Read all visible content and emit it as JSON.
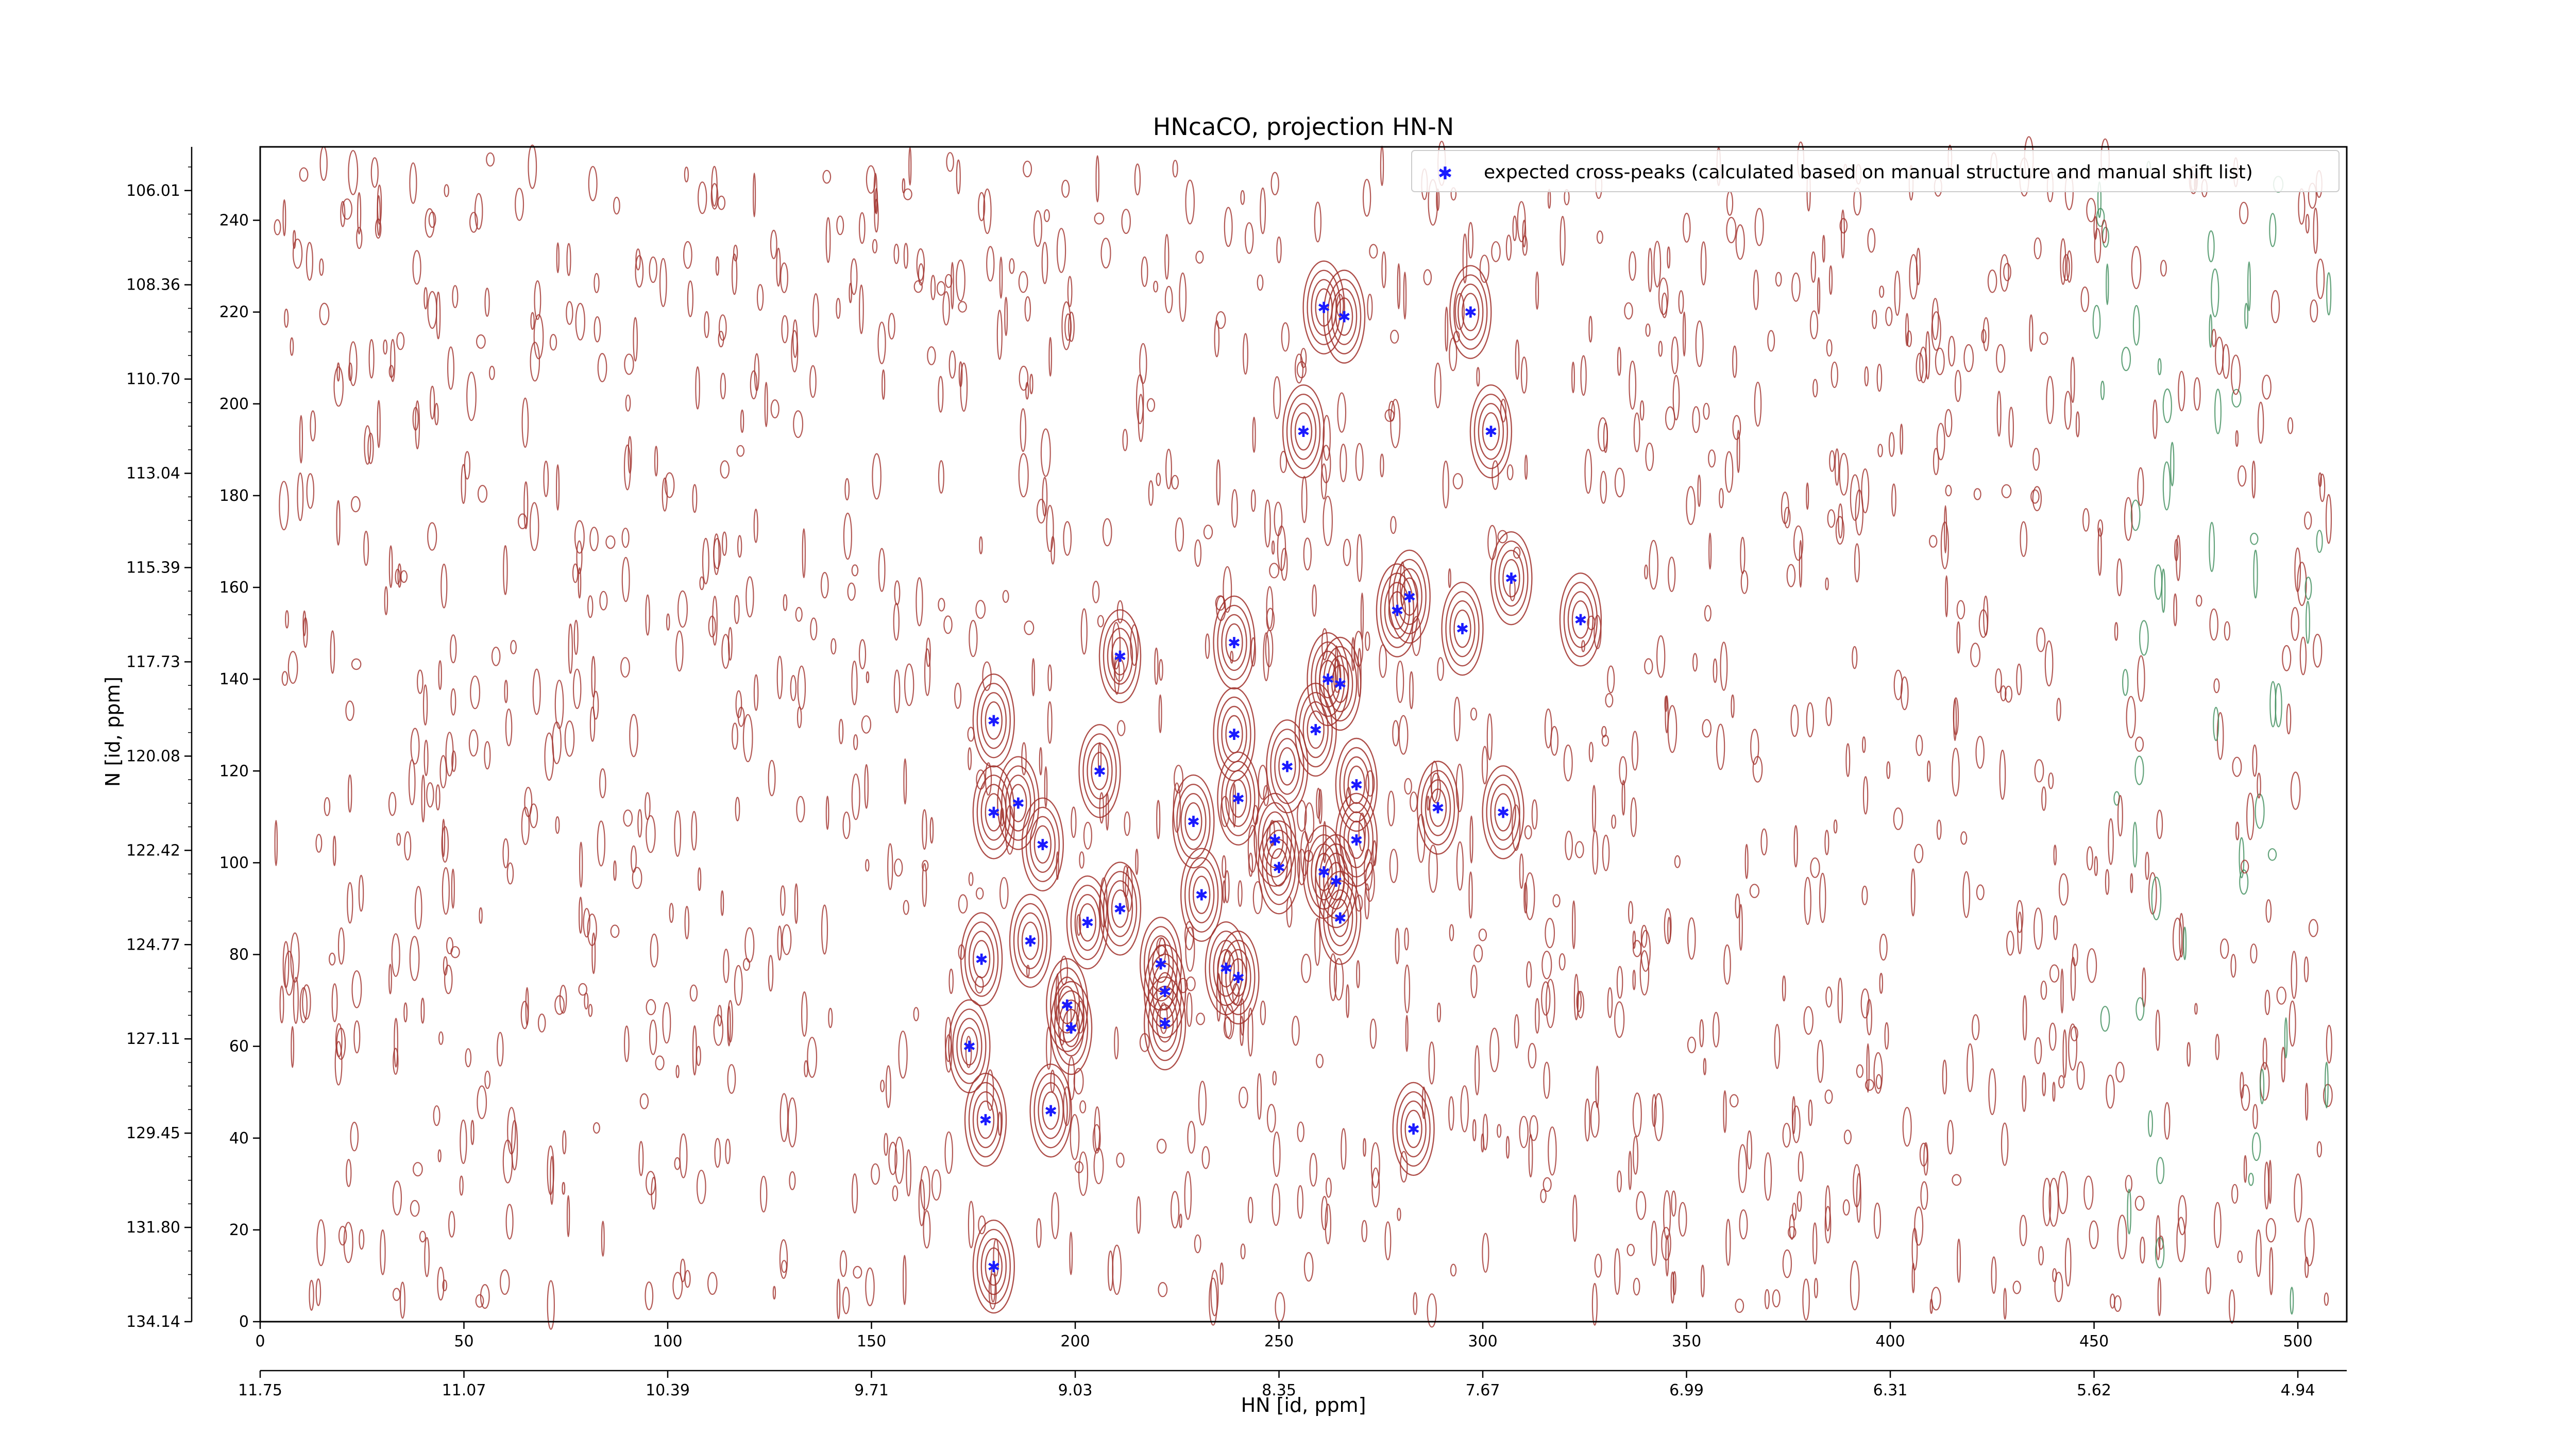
{
  "chart_data": {
    "type": "scatter",
    "title": "HNcaCO, projection HN-N",
    "xlabel": "HN [id, ppm]",
    "ylabel": "N [id, ppm]",
    "x_index_range": [
      0,
      512
    ],
    "y_index_range": [
      0,
      256
    ],
    "x_index_ticks": [
      "0",
      "50",
      "100",
      "150",
      "200",
      "250",
      "300",
      "350",
      "400",
      "450",
      "500"
    ],
    "x_ppm_ticks": [
      "11.75",
      "11.07",
      "10.39",
      "9.71",
      "9.03",
      "8.35",
      "7.67",
      "6.99",
      "6.31",
      "5.62",
      "4.94"
    ],
    "y_index_ticks": [
      "0",
      "20",
      "40",
      "60",
      "80",
      "100",
      "120",
      "140",
      "160",
      "180",
      "200",
      "220",
      "240"
    ],
    "y_ppm_ticks": [
      "134.14",
      "131.80",
      "129.45",
      "127.11",
      "124.77",
      "122.42",
      "120.08",
      "117.73",
      "115.39",
      "113.04",
      "110.70",
      "108.36",
      "106.01"
    ],
    "legend": {
      "placement": "top-right",
      "marker": "blue-star",
      "label": "expected cross-peaks (calculated based on manual structure and manual shift list)"
    },
    "colors": {
      "positive_contour": "#a0302a",
      "negative_contour": "#3c8c5a",
      "marker": "#1a1aff"
    },
    "series": [
      {
        "name": "expected cross-peaks (calculated based on manual structure and manual shift list)",
        "points": [
          [
            261,
            221
          ],
          [
            266,
            219
          ],
          [
            297,
            220
          ],
          [
            256,
            194
          ],
          [
            302,
            194
          ],
          [
            307,
            162
          ],
          [
            282,
            158
          ],
          [
            279,
            155
          ],
          [
            295,
            151
          ],
          [
            324,
            153
          ],
          [
            211,
            145
          ],
          [
            239,
            148
          ],
          [
            262,
            140
          ],
          [
            265,
            139
          ],
          [
            180,
            131
          ],
          [
            239,
            128
          ],
          [
            259,
            129
          ],
          [
            252,
            121
          ],
          [
            269,
            117
          ],
          [
            206,
            120
          ],
          [
            180,
            111
          ],
          [
            186,
            113
          ],
          [
            240,
            114
          ],
          [
            289,
            112
          ],
          [
            305,
            111
          ],
          [
            229,
            109
          ],
          [
            192,
            104
          ],
          [
            249,
            105
          ],
          [
            269,
            105
          ],
          [
            250,
            99
          ],
          [
            261,
            98
          ],
          [
            264,
            96
          ],
          [
            231,
            93
          ],
          [
            211,
            90
          ],
          [
            203,
            87
          ],
          [
            265,
            88
          ],
          [
            189,
            83
          ],
          [
            177,
            79
          ],
          [
            221,
            78
          ],
          [
            237,
            77
          ],
          [
            240,
            75
          ],
          [
            222,
            72
          ],
          [
            198,
            69
          ],
          [
            222,
            65
          ],
          [
            199,
            64
          ],
          [
            174,
            60
          ],
          [
            194,
            46
          ],
          [
            178,
            44
          ],
          [
            283,
            42
          ],
          [
            180,
            12
          ]
        ]
      }
    ]
  }
}
